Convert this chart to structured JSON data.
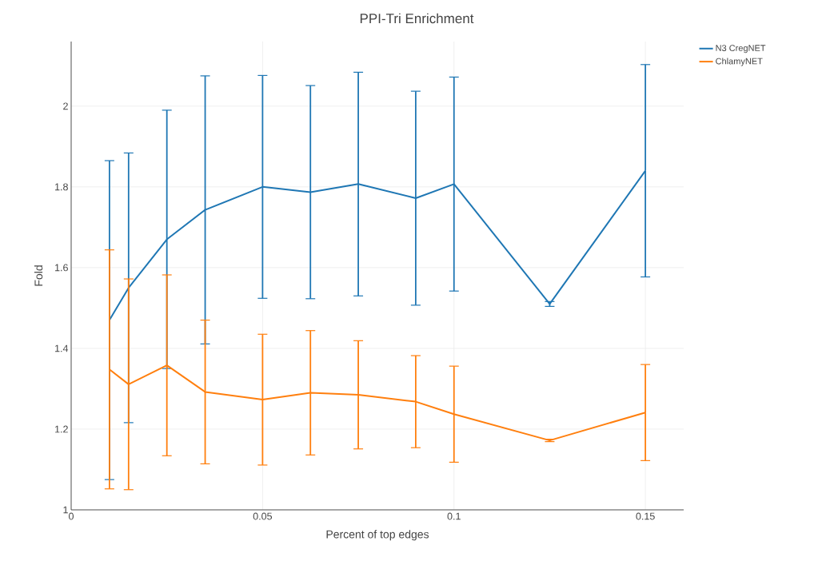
{
  "chart_data": {
    "type": "line",
    "title": "PPI-Tri Enrichment",
    "xlabel": "Percent of top edges",
    "ylabel": "Fold",
    "x": [
      0.01,
      0.015,
      0.025,
      0.035,
      0.05,
      0.0625,
      0.075,
      0.09,
      0.1,
      0.125,
      0.15
    ],
    "series": [
      {
        "name": "N3 CregNET",
        "color": "#1f77b4",
        "values": [
          1.47,
          1.55,
          1.67,
          1.743,
          1.8,
          1.787,
          1.807,
          1.772,
          1.807,
          1.51,
          1.84
        ],
        "errors": [
          0.395,
          0.334,
          0.32,
          0.332,
          0.276,
          0.264,
          0.277,
          0.265,
          0.265,
          0.006,
          0.263
        ]
      },
      {
        "name": "ChlamyNET",
        "color": "#ff7f0e",
        "values": [
          1.348,
          1.311,
          1.358,
          1.292,
          1.273,
          1.29,
          1.285,
          1.268,
          1.237,
          1.172,
          1.241
        ],
        "errors": [
          0.296,
          0.261,
          0.224,
          0.178,
          0.162,
          0.154,
          0.134,
          0.114,
          0.119,
          0.003,
          0.119
        ]
      }
    ],
    "xlim": [
      0,
      0.16
    ],
    "ylim": [
      1,
      2.16
    ],
    "xticks": [
      0,
      0.05,
      0.1,
      0.15
    ],
    "yticks": [
      1,
      1.2,
      1.4,
      1.6,
      1.8,
      2
    ],
    "grid": true,
    "legend": "top right"
  }
}
